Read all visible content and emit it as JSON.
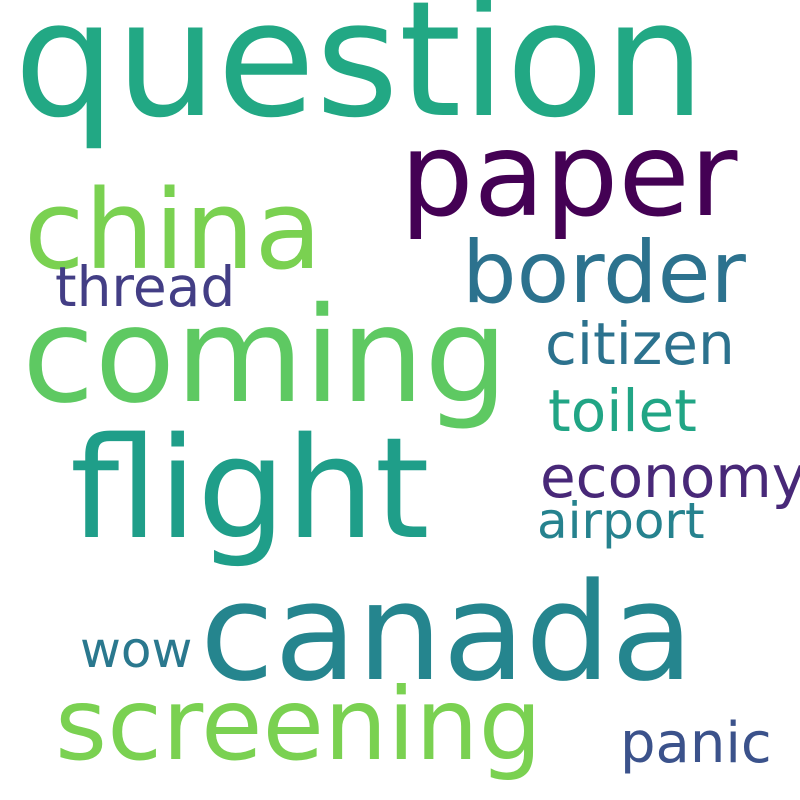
{
  "words": [
    {
      "key": "question",
      "text": "question",
      "color": "#22a884"
    },
    {
      "key": "paper",
      "text": "paper",
      "color": "#440154"
    },
    {
      "key": "china",
      "text": "china",
      "color": "#7ad151"
    },
    {
      "key": "border",
      "text": "border",
      "color": "#2c728e"
    },
    {
      "key": "thread",
      "text": "thread",
      "color": "#433e85"
    },
    {
      "key": "coming",
      "text": "coming",
      "color": "#5ec962"
    },
    {
      "key": "citizen",
      "text": "citizen",
      "color": "#2c728e"
    },
    {
      "key": "toilet",
      "text": "toilet",
      "color": "#21a585"
    },
    {
      "key": "flight",
      "text": "flight",
      "color": "#1f9e89"
    },
    {
      "key": "economy",
      "text": "economy",
      "color": "#482878"
    },
    {
      "key": "airport",
      "text": "airport",
      "color": "#26828e"
    },
    {
      "key": "canada",
      "text": "canada",
      "color": "#25858e"
    },
    {
      "key": "wow",
      "text": "wow",
      "color": "#2a788e"
    },
    {
      "key": "screening",
      "text": "screening",
      "color": "#7ad151"
    },
    {
      "key": "panic",
      "text": "panic",
      "color": "#3b528b"
    }
  ]
}
